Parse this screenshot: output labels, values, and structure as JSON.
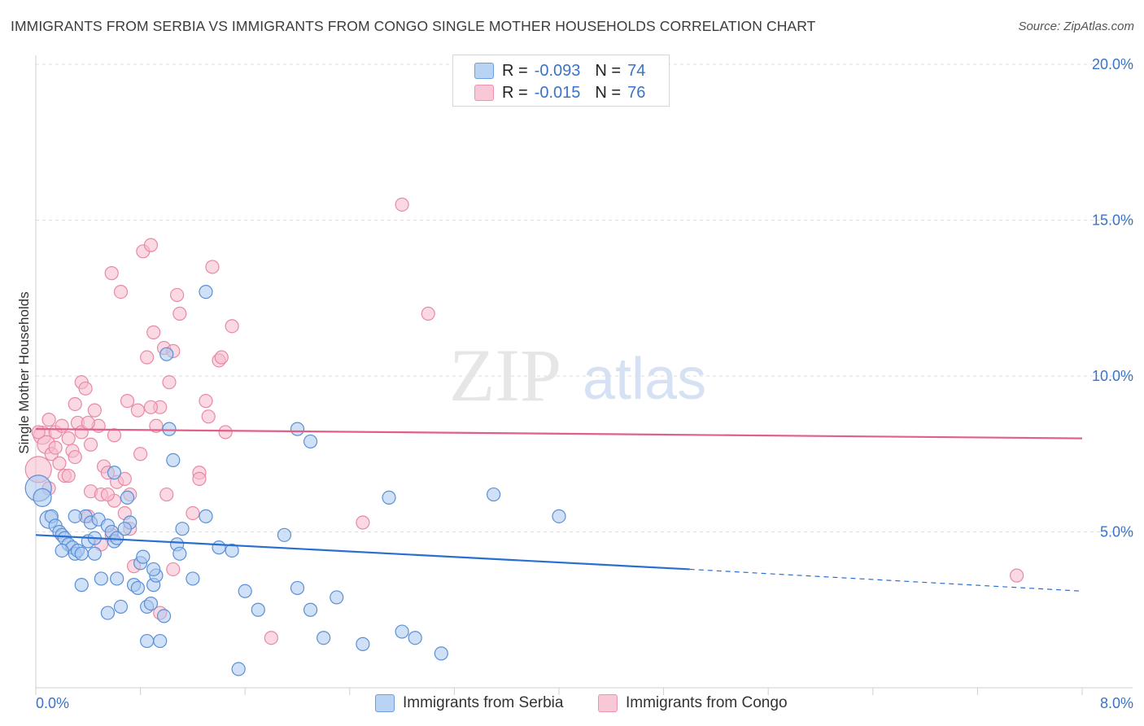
{
  "title": "IMMIGRANTS FROM SERBIA VS IMMIGRANTS FROM CONGO SINGLE MOTHER HOUSEHOLDS CORRELATION CHART",
  "source": "Source: ZipAtlas.com",
  "legend": {
    "rows": [
      {
        "r_label": "R =",
        "r_value": "-0.093",
        "n_label": "N =",
        "n_value": "74"
      },
      {
        "r_label": "R =",
        "r_value": "-0.015",
        "n_label": "N =",
        "n_value": "76"
      }
    ]
  },
  "bottom_legend": {
    "serbia": "Immigrants from Serbia",
    "congo": "Immigrants from Congo"
  },
  "watermark": {
    "zip": "ZIP",
    "atlas": "atlas"
  },
  "colors": {
    "serbia_fill": "#a9c8f0",
    "serbia_stroke": "#5a8fd6",
    "serbia_line": "#2a6fcf",
    "congo_fill": "#f7b9cc",
    "congo_stroke": "#e889a6",
    "congo_line": "#e0608a",
    "tick_label": "#3a73c8"
  },
  "chart_data": {
    "type": "scatter",
    "title": "IMMIGRANTS FROM SERBIA VS IMMIGRANTS FROM CONGO SINGLE MOTHER HOUSEHOLDS CORRELATION CHART",
    "xlabel": "",
    "ylabel": "Single Mother Households",
    "xlim": [
      0,
      8
    ],
    "ylim": [
      0,
      20
    ],
    "x_tick_labels": [
      "0.0%",
      "8.0%"
    ],
    "y_ticks": [
      5,
      10,
      15,
      20
    ],
    "y_tick_labels": [
      "5.0%",
      "10.0%",
      "15.0%",
      "20.0%"
    ],
    "series": [
      {
        "name": "Immigrants from Serbia",
        "r": -0.093,
        "n": 74,
        "trend": {
          "x0": 0,
          "y0": 4.9,
          "x1": 5.0,
          "y1": 3.8,
          "dash_to_x": 8,
          "dash_to_y": 3.1
        },
        "points": [
          [
            0.02,
            6.4
          ],
          [
            0.05,
            6.1
          ],
          [
            0.1,
            5.4
          ],
          [
            0.12,
            5.5
          ],
          [
            0.15,
            5.2
          ],
          [
            0.18,
            5.0
          ],
          [
            0.2,
            4.9
          ],
          [
            0.22,
            4.8
          ],
          [
            0.25,
            4.6
          ],
          [
            0.28,
            4.5
          ],
          [
            0.3,
            4.3
          ],
          [
            0.32,
            4.4
          ],
          [
            0.35,
            4.3
          ],
          [
            0.38,
            5.5
          ],
          [
            0.4,
            4.7
          ],
          [
            0.42,
            5.3
          ],
          [
            0.45,
            4.8
          ],
          [
            0.48,
            5.4
          ],
          [
            0.5,
            3.5
          ],
          [
            0.55,
            5.2
          ],
          [
            0.58,
            5.0
          ],
          [
            0.6,
            4.7
          ],
          [
            0.62,
            4.8
          ],
          [
            0.65,
            2.6
          ],
          [
            0.7,
            6.1
          ],
          [
            0.72,
            5.3
          ],
          [
            0.75,
            3.3
          ],
          [
            0.78,
            3.2
          ],
          [
            0.8,
            4.0
          ],
          [
            0.82,
            4.2
          ],
          [
            0.85,
            2.6
          ],
          [
            0.88,
            2.7
          ],
          [
            0.9,
            3.3
          ],
          [
            0.92,
            3.6
          ],
          [
            0.95,
            1.5
          ],
          [
            1.0,
            10.7
          ],
          [
            1.02,
            8.3
          ],
          [
            1.05,
            7.3
          ],
          [
            1.08,
            4.6
          ],
          [
            1.1,
            4.3
          ],
          [
            1.12,
            5.1
          ],
          [
            1.2,
            3.5
          ],
          [
            1.3,
            5.5
          ],
          [
            1.4,
            4.5
          ],
          [
            1.5,
            4.4
          ],
          [
            1.6,
            3.1
          ],
          [
            1.7,
            2.5
          ],
          [
            1.9,
            4.9
          ],
          [
            2.0,
            3.2
          ],
          [
            2.1,
            2.5
          ],
          [
            2.2,
            1.6
          ],
          [
            2.3,
            2.9
          ],
          [
            2.5,
            1.4
          ],
          [
            2.7,
            6.1
          ],
          [
            2.9,
            1.6
          ],
          [
            3.1,
            1.1
          ],
          [
            3.5,
            6.2
          ],
          [
            4.0,
            5.5
          ],
          [
            1.3,
            12.7
          ],
          [
            2.0,
            8.3
          ],
          [
            2.1,
            7.9
          ],
          [
            0.6,
            6.9
          ],
          [
            0.35,
            3.3
          ],
          [
            0.55,
            2.4
          ],
          [
            0.85,
            1.5
          ],
          [
            0.3,
            5.5
          ],
          [
            0.45,
            4.3
          ],
          [
            0.68,
            5.1
          ],
          [
            1.55,
            0.6
          ],
          [
            0.9,
            3.8
          ],
          [
            0.98,
            2.3
          ],
          [
            0.2,
            4.4
          ],
          [
            0.62,
            3.5
          ],
          [
            2.8,
            1.8
          ]
        ]
      },
      {
        "name": "Immigrants from Congo",
        "r": -0.015,
        "n": 76,
        "trend": {
          "x0": 0,
          "y0": 8.3,
          "x1": 8,
          "y1": 8.0
        },
        "points": [
          [
            0.02,
            7.0
          ],
          [
            0.05,
            8.1
          ],
          [
            0.08,
            7.8
          ],
          [
            0.1,
            8.6
          ],
          [
            0.12,
            7.5
          ],
          [
            0.15,
            8.2
          ],
          [
            0.18,
            7.2
          ],
          [
            0.2,
            8.4
          ],
          [
            0.22,
            6.8
          ],
          [
            0.25,
            8.0
          ],
          [
            0.28,
            7.6
          ],
          [
            0.3,
            9.1
          ],
          [
            0.32,
            8.5
          ],
          [
            0.35,
            9.8
          ],
          [
            0.38,
            9.6
          ],
          [
            0.4,
            5.5
          ],
          [
            0.42,
            6.3
          ],
          [
            0.45,
            8.9
          ],
          [
            0.48,
            8.4
          ],
          [
            0.5,
            6.2
          ],
          [
            0.52,
            7.1
          ],
          [
            0.55,
            6.9
          ],
          [
            0.58,
            13.3
          ],
          [
            0.6,
            6.0
          ],
          [
            0.62,
            6.6
          ],
          [
            0.65,
            12.7
          ],
          [
            0.68,
            5.6
          ],
          [
            0.7,
            9.2
          ],
          [
            0.72,
            6.2
          ],
          [
            0.75,
            3.9
          ],
          [
            0.78,
            8.9
          ],
          [
            0.8,
            7.5
          ],
          [
            0.82,
            14.0
          ],
          [
            0.85,
            10.6
          ],
          [
            0.88,
            14.2
          ],
          [
            0.9,
            11.4
          ],
          [
            0.92,
            8.4
          ],
          [
            0.95,
            9.0
          ],
          [
            0.98,
            10.9
          ],
          [
            1.0,
            6.2
          ],
          [
            1.02,
            9.8
          ],
          [
            1.05,
            10.8
          ],
          [
            1.08,
            12.6
          ],
          [
            1.1,
            12.0
          ],
          [
            1.2,
            5.6
          ],
          [
            1.25,
            6.9
          ],
          [
            1.3,
            9.2
          ],
          [
            1.32,
            8.7
          ],
          [
            1.35,
            13.5
          ],
          [
            1.4,
            10.5
          ],
          [
            1.42,
            10.6
          ],
          [
            1.45,
            8.2
          ],
          [
            1.5,
            11.6
          ],
          [
            1.8,
            1.6
          ],
          [
            2.5,
            5.3
          ],
          [
            2.8,
            15.5
          ],
          [
            3.0,
            12.0
          ],
          [
            7.5,
            3.6
          ],
          [
            0.6,
            8.1
          ],
          [
            0.55,
            6.2
          ],
          [
            0.35,
            8.2
          ],
          [
            0.42,
            7.8
          ],
          [
            0.72,
            5.1
          ],
          [
            0.95,
            2.4
          ],
          [
            1.05,
            3.8
          ],
          [
            0.5,
            4.6
          ],
          [
            0.3,
            7.4
          ],
          [
            0.25,
            6.8
          ],
          [
            0.15,
            7.7
          ],
          [
            0.1,
            6.4
          ],
          [
            0.88,
            9.0
          ],
          [
            1.25,
            6.7
          ],
          [
            0.68,
            6.7
          ],
          [
            0.58,
            4.9
          ],
          [
            0.4,
            8.5
          ],
          [
            0.02,
            8.2
          ]
        ]
      }
    ]
  }
}
